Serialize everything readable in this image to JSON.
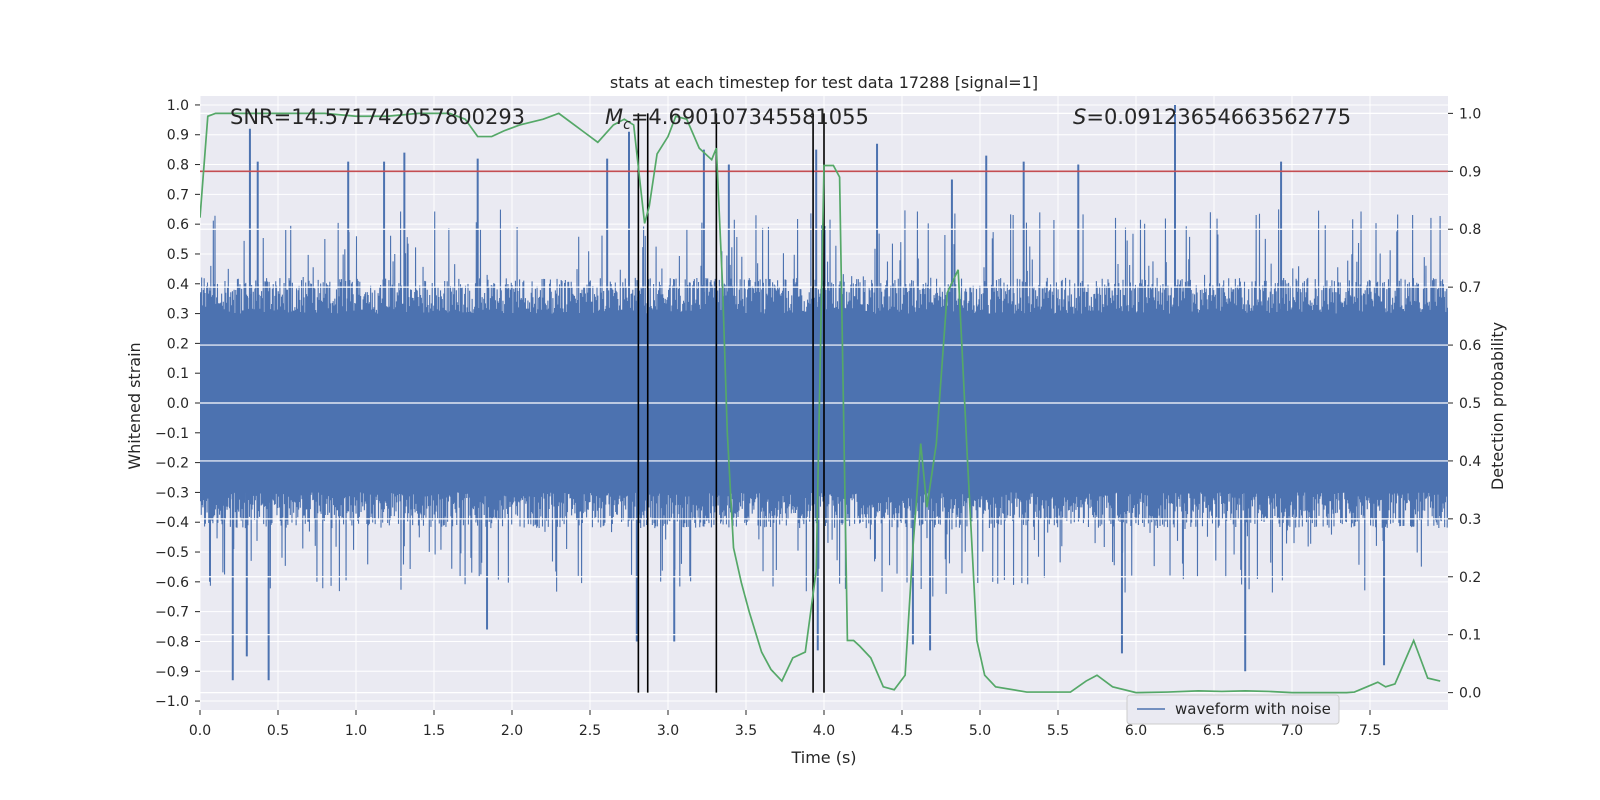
{
  "chart_data": {
    "type": "line",
    "title": "stats at each timestep for test data 17288 [signal=1]",
    "xlabel": "Time (s)",
    "ylabel_left": "Whitened strain",
    "ylabel_right": "Detection probability",
    "xlim": [
      0,
      8
    ],
    "ylim_left": [
      -1.03,
      1.03
    ],
    "ylim_right": [
      -0.03,
      1.03
    ],
    "grid": true,
    "x_ticks": [
      0.0,
      0.5,
      1.0,
      1.5,
      2.0,
      2.5,
      3.0,
      3.5,
      4.0,
      4.5,
      5.0,
      5.5,
      6.0,
      6.5,
      7.0,
      7.5
    ],
    "x_tick_labels": [
      "0.0",
      "0.5",
      "1.0",
      "1.5",
      "2.0",
      "2.5",
      "3.0",
      "3.5",
      "4.0",
      "4.5",
      "5.0",
      "5.5",
      "6.0",
      "6.5",
      "7.0",
      "7.5"
    ],
    "y_left_ticks": [
      -1.0,
      -0.9,
      -0.8,
      -0.7,
      -0.6,
      -0.5,
      -0.4,
      -0.3,
      -0.2,
      -0.1,
      0.0,
      0.1,
      0.2,
      0.3,
      0.4,
      0.5,
      0.6,
      0.7,
      0.8,
      0.9,
      1.0
    ],
    "y_left_tick_labels": [
      "−1.0",
      "−0.9",
      "−0.8",
      "−0.7",
      "−0.6",
      "−0.5",
      "−0.4",
      "−0.3",
      "−0.2",
      "−0.1",
      "0.0",
      "0.1",
      "0.2",
      "0.3",
      "0.4",
      "0.5",
      "0.6",
      "0.7",
      "0.8",
      "0.9",
      "1.0"
    ],
    "y_right_ticks": [
      0.0,
      0.1,
      0.2,
      0.3,
      0.4,
      0.5,
      0.6,
      0.7,
      0.8,
      0.9,
      1.0
    ],
    "y_right_tick_labels": [
      "0.0",
      "0.1",
      "0.2",
      "0.3",
      "0.4",
      "0.5",
      "0.6",
      "0.7",
      "0.8",
      "0.9",
      "1.0"
    ],
    "annotations": {
      "snr": "SNR=14.571742057800293",
      "mc_symbol": "M",
      "mc_sub": "c",
      "mc_value": "=4.690107345581055",
      "s_symbol": "S",
      "s_value": "=0.09123654663562775"
    },
    "threshold": {
      "axis": "right",
      "value": 0.9,
      "color": "#c44e52"
    },
    "vertical_markers": [
      2.81,
      2.87,
      3.31,
      3.93,
      4.0
    ],
    "legend": {
      "label": "waveform with noise",
      "location": "lower-right"
    },
    "waveform": {
      "name": "waveform with noise",
      "color": "#4c72b0",
      "note": "dense noise trace; typical envelope about ±0.35, spikes reaching ±0.6 to ±1.0",
      "spikes": [
        {
          "t": 0.32,
          "v": 0.92
        },
        {
          "t": 0.37,
          "v": 0.81
        },
        {
          "t": 0.95,
          "v": 0.81
        },
        {
          "t": 1.18,
          "v": 0.81
        },
        {
          "t": 1.31,
          "v": 0.84
        },
        {
          "t": 1.78,
          "v": 0.82
        },
        {
          "t": 2.61,
          "v": 0.82
        },
        {
          "t": 2.75,
          "v": 0.91
        },
        {
          "t": 3.23,
          "v": 0.85
        },
        {
          "t": 3.39,
          "v": 0.8
        },
        {
          "t": 3.95,
          "v": 0.85
        },
        {
          "t": 4.34,
          "v": 0.87
        },
        {
          "t": 4.82,
          "v": 0.75
        },
        {
          "t": 5.04,
          "v": 0.83
        },
        {
          "t": 5.28,
          "v": 0.81
        },
        {
          "t": 5.63,
          "v": 0.8
        },
        {
          "t": 6.25,
          "v": 1.0
        },
        {
          "t": 6.93,
          "v": 0.81
        },
        {
          "t": 0.21,
          "v": -0.93
        },
        {
          "t": 0.44,
          "v": -0.93
        },
        {
          "t": 0.3,
          "v": -0.85
        },
        {
          "t": 2.8,
          "v": -0.8
        },
        {
          "t": 3.04,
          "v": -0.8
        },
        {
          "t": 3.96,
          "v": -0.83
        },
        {
          "t": 4.57,
          "v": -0.81
        },
        {
          "t": 4.68,
          "v": -0.83
        },
        {
          "t": 5.91,
          "v": -0.84
        },
        {
          "t": 6.7,
          "v": -0.9
        },
        {
          "t": 7.59,
          "v": -0.88
        },
        {
          "t": 1.84,
          "v": -0.76
        }
      ]
    },
    "probability_series": {
      "name": "Detection probability",
      "color": "#55a868",
      "x": [
        0.0,
        0.05,
        0.1,
        0.2,
        0.4,
        0.6,
        0.8,
        1.0,
        1.2,
        1.4,
        1.6,
        1.7,
        1.78,
        1.87,
        1.95,
        2.05,
        2.2,
        2.3,
        2.45,
        2.55,
        2.65,
        2.72,
        2.78,
        2.85,
        2.88,
        2.93,
        3.0,
        3.05,
        3.12,
        3.2,
        3.28,
        3.31,
        3.35,
        3.38,
        3.42,
        3.47,
        3.52,
        3.6,
        3.66,
        3.73,
        3.8,
        3.88,
        3.95,
        4.0,
        4.06,
        4.1,
        4.15,
        4.19,
        4.23,
        4.3,
        4.38,
        4.45,
        4.52,
        4.57,
        4.62,
        4.66,
        4.72,
        4.79,
        4.86,
        4.92,
        4.98,
        5.03,
        5.1,
        5.3,
        5.5,
        5.58,
        5.68,
        5.75,
        5.85,
        6.0,
        6.2,
        6.4,
        6.55,
        6.7,
        6.85,
        7.0,
        7.2,
        7.35,
        7.4,
        7.48,
        7.55,
        7.6,
        7.66,
        7.78,
        7.87,
        7.95
      ],
      "y": [
        0.82,
        0.995,
        1.0,
        1.0,
        1.0,
        1.0,
        1.0,
        0.995,
        0.995,
        1.0,
        1.0,
        0.99,
        0.96,
        0.96,
        0.97,
        0.98,
        0.99,
        1.0,
        0.97,
        0.95,
        0.98,
        0.99,
        0.98,
        0.81,
        0.84,
        0.93,
        0.96,
        0.995,
        0.99,
        0.94,
        0.92,
        0.94,
        0.7,
        0.45,
        0.25,
        0.19,
        0.14,
        0.07,
        0.04,
        0.02,
        0.06,
        0.07,
        0.21,
        0.91,
        0.91,
        0.89,
        0.09,
        0.09,
        0.08,
        0.06,
        0.01,
        0.005,
        0.03,
        0.25,
        0.43,
        0.32,
        0.43,
        0.69,
        0.73,
        0.4,
        0.09,
        0.03,
        0.01,
        0.001,
        0.001,
        0.001,
        0.02,
        0.03,
        0.01,
        0.0,
        0.001,
        0.003,
        0.002,
        0.003,
        0.002,
        0.0,
        0.0,
        0.0,
        0.001,
        0.01,
        0.018,
        0.01,
        0.015,
        0.09,
        0.025,
        0.02
      ]
    }
  }
}
